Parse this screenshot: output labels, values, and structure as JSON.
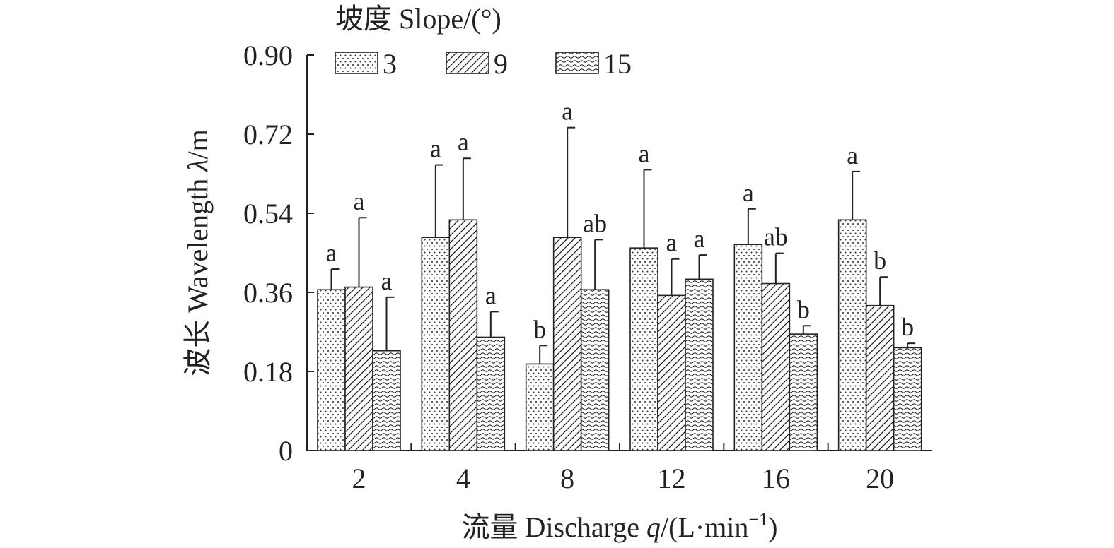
{
  "chart_data": {
    "type": "bar",
    "title": "",
    "xlabel": "流量 Discharge q/(L·min⁻¹)",
    "ylabel": "波长 Wavelength λ/m",
    "legend_title": "坡度 Slope/(°)",
    "legend_position": "top",
    "categories": [
      "2",
      "4",
      "8",
      "12",
      "16",
      "20"
    ],
    "ylim": [
      0,
      0.9
    ],
    "yticks": [
      "0",
      "0.18",
      "0.36",
      "0.54",
      "0.72",
      "0.90"
    ],
    "grid": false,
    "series": [
      {
        "name": "3",
        "pattern": "dots",
        "values": [
          0.366,
          0.485,
          0.197,
          0.461,
          0.469,
          0.525
        ],
        "errors": [
          0.047,
          0.165,
          0.042,
          0.178,
          0.081,
          0.11
        ],
        "labels": [
          "a",
          "a",
          "b",
          "a",
          "a",
          "a"
        ]
      },
      {
        "name": "9",
        "pattern": "hatch",
        "values": [
          0.372,
          0.525,
          0.485,
          0.353,
          0.38,
          0.33
        ],
        "errors": [
          0.158,
          0.14,
          0.25,
          0.083,
          0.069,
          0.065
        ],
        "labels": [
          "a",
          "a",
          "a",
          "a",
          "ab",
          "b"
        ]
      },
      {
        "name": "15",
        "pattern": "wave",
        "values": [
          0.227,
          0.258,
          0.366,
          0.39,
          0.265,
          0.234
        ],
        "errors": [
          0.122,
          0.058,
          0.114,
          0.055,
          0.019,
          0.01
        ],
        "labels": [
          "a",
          "a",
          "ab",
          "a",
          "b",
          "b"
        ]
      }
    ]
  }
}
